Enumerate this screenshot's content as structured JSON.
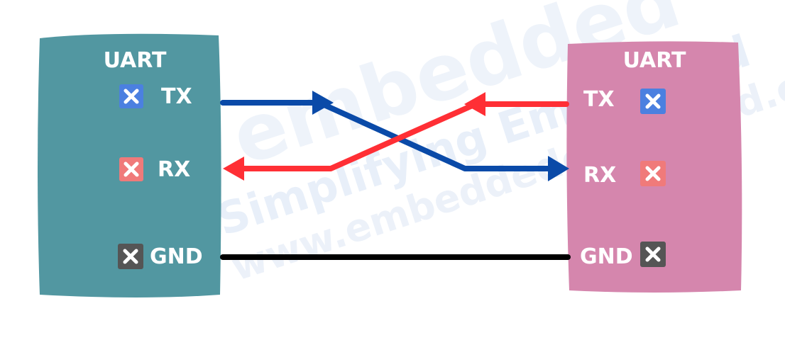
{
  "colors": {
    "left_box": "#5297a1",
    "right_box": "#d586ad",
    "tx_line": "#0a4aa8",
    "rx_line": "#ff2f35",
    "gnd_line": "#000000",
    "tx_icon": "#4b80e0",
    "rx_icon": "#f07a7a",
    "gnd_icon": "#555555",
    "watermark": "#e6edf8"
  },
  "watermark": {
    "line1": "embedded",
    "line2": "Simplifying Embedded",
    "line3": "www.embeddedexplained.com"
  },
  "devices": {
    "left": {
      "title": "UART",
      "pins": [
        {
          "label": "TX",
          "icon": "close-icon",
          "color_key": "tx_icon"
        },
        {
          "label": "RX",
          "icon": "close-icon",
          "color_key": "rx_icon"
        },
        {
          "label": "GND",
          "icon": "close-icon",
          "color_key": "gnd_icon"
        }
      ]
    },
    "right": {
      "title": "UART",
      "pins": [
        {
          "label": "TX",
          "icon": "close-icon",
          "color_key": "tx_icon"
        },
        {
          "label": "RX",
          "icon": "close-icon",
          "color_key": "rx_icon"
        },
        {
          "label": "GND",
          "icon": "close-icon",
          "color_key": "gnd_icon"
        }
      ]
    }
  },
  "connections": [
    {
      "from": "left.TX",
      "to": "right.RX",
      "color_key": "tx_line"
    },
    {
      "from": "right.TX",
      "to": "left.RX",
      "color_key": "rx_line"
    },
    {
      "from": "left.GND",
      "to": "right.GND",
      "color_key": "gnd_line"
    }
  ]
}
